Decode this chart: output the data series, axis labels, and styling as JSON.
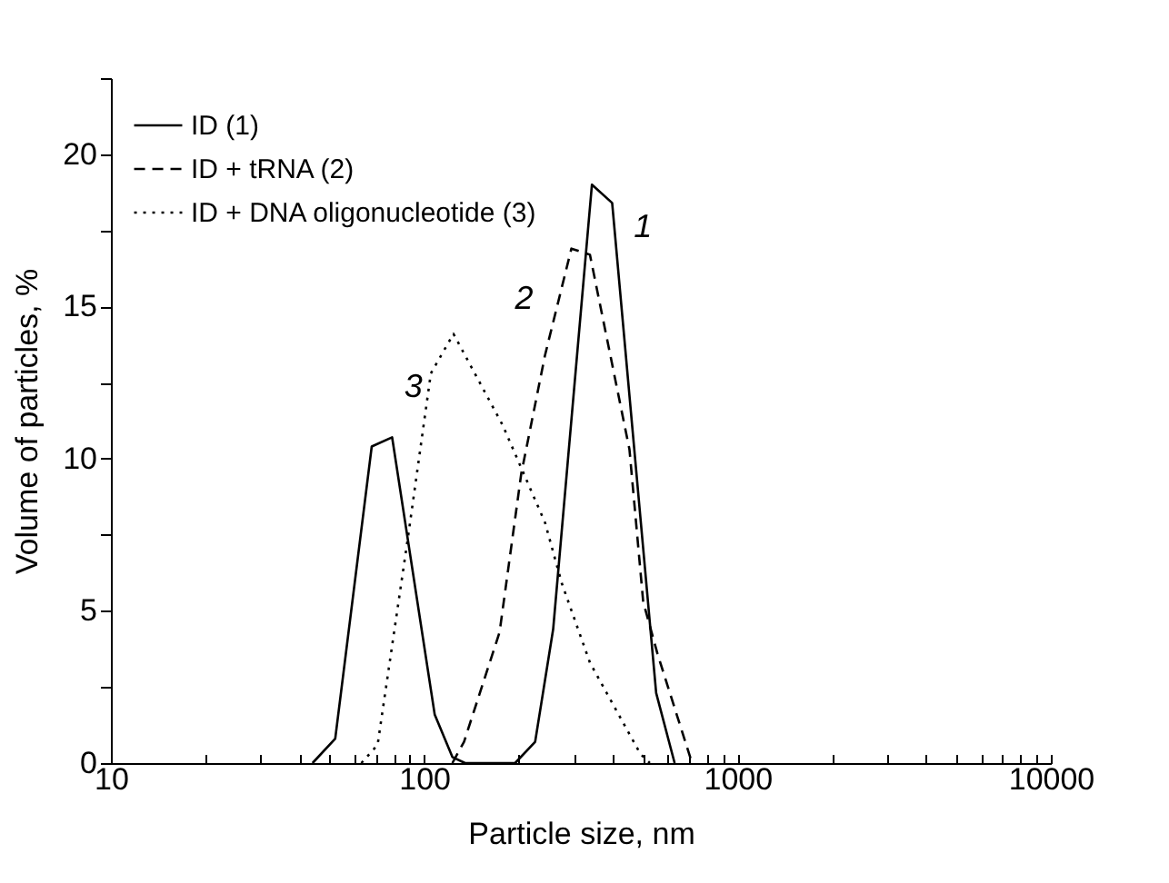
{
  "chart_data": {
    "type": "line",
    "xlabel": "Particle size, nm",
    "ylabel": "Volume of particles, %",
    "log": "x",
    "grid": false,
    "legend": "top left",
    "xlim": [
      10,
      10000
    ],
    "xticks": [
      10,
      {
        "value": 20,
        "label": null
      },
      {
        "value": 30,
        "label": null
      },
      {
        "value": 40,
        "label": null
      },
      {
        "value": 50,
        "label": null
      },
      {
        "value": 60,
        "label": null
      },
      {
        "value": 70,
        "label": null
      },
      {
        "value": 80,
        "label": null
      },
      {
        "value": 90,
        "label": null
      },
      100,
      {
        "value": 200,
        "label": null
      },
      {
        "value": 300,
        "label": null
      },
      {
        "value": 400,
        "label": null
      },
      {
        "value": 500,
        "label": null
      },
      {
        "value": 600,
        "label": null
      },
      {
        "value": 700,
        "label": null
      },
      {
        "value": 800,
        "label": null
      },
      {
        "value": 900,
        "label": null
      },
      1000,
      {
        "value": 2000,
        "label": null
      },
      {
        "value": 3000,
        "label": null
      },
      {
        "value": 4000,
        "label": null
      },
      {
        "value": 5000,
        "label": null
      },
      {
        "value": 6000,
        "label": null
      },
      {
        "value": 7000,
        "label": null
      },
      {
        "value": 8000,
        "label": null
      },
      {
        "value": 9000,
        "label": null
      },
      10000
    ],
    "ylim": [
      0,
      22.5
    ],
    "yticks": [
      0,
      {
        "value": 2.5,
        "label": null
      },
      5,
      {
        "value": 7.5,
        "label": null
      },
      10,
      {
        "value": 12.5,
        "label": null
      },
      15,
      {
        "value": 17.5,
        "label": null
      },
      20,
      {
        "value": 22.5,
        "label": null
      }
    ],
    "series": [
      {
        "name": "ID (1)",
        "color": "#000000",
        "line_style": "solid",
        "x": [
          44,
          52,
          68,
          79,
          108,
          123,
          135,
          195,
          226,
          258,
          343,
          398,
          550,
          630
        ],
        "values": [
          0,
          0.8,
          10.4,
          10.7,
          1.6,
          0.2,
          0,
          0,
          0.7,
          4.4,
          19.0,
          18.4,
          2.3,
          0
        ]
      },
      {
        "name": "ID + tRNA (2)",
        "color": "#000000",
        "line_style": "dashed",
        "x": [
          123,
          134,
          174,
          204,
          243,
          295,
          338,
          452,
          500,
          555,
          716
        ],
        "values": [
          0,
          0.7,
          4.3,
          9.5,
          13.4,
          16.9,
          16.7,
          10.3,
          5.3,
          3.6,
          0
        ]
      },
      {
        "name": "ID + DNA oligonucleotide (3)",
        "color": "#000000",
        "line_style": "dotted",
        "x": [
          63,
          71,
          89,
          105,
          124,
          178,
          243,
          275,
          338,
          490,
          525
        ],
        "values": [
          0,
          0.6,
          7.5,
          12.8,
          14.1,
          11.1,
          7.9,
          5.9,
          3.3,
          0.3,
          0
        ]
      }
    ],
    "annotations": [
      "1",
      "2",
      "3"
    ]
  }
}
